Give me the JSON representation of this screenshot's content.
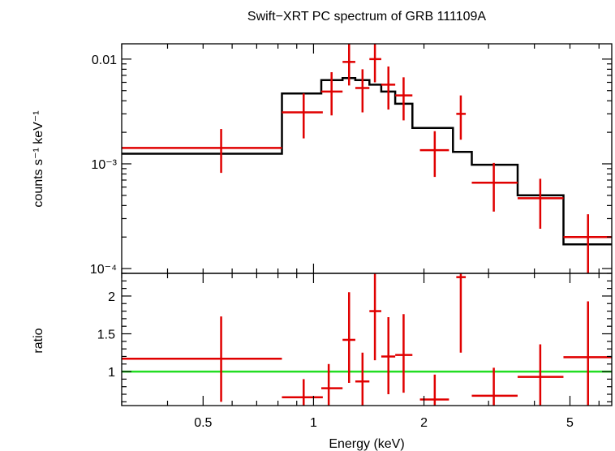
{
  "chart_data": [
    {
      "type": "line",
      "title": "Swift−XRT PC spectrum of GRB 111109A",
      "ylabel": "counts s⁻¹ keV⁻¹",
      "xlabel": "",
      "x_scale": "log",
      "y_scale": "log",
      "xlim": [
        0.3,
        6.5
      ],
      "ylim": [
        9e-05,
        0.014
      ],
      "y_ticks": [
        {
          "value": 0.01,
          "label": "0.01"
        },
        {
          "value": 0.001,
          "label": "10⁻³"
        },
        {
          "value": 0.0001,
          "label": "10⁻⁴"
        }
      ],
      "data_color": "#e00000",
      "model_color": "#000000",
      "data": [
        {
          "x": 0.56,
          "xlo": 0.3,
          "xhi": 0.82,
          "y": 0.00142,
          "ylo": 0.00082,
          "yhi": 0.00215
        },
        {
          "x": 0.94,
          "xlo": 0.82,
          "xhi": 1.06,
          "y": 0.0031,
          "ylo": 0.00175,
          "yhi": 0.0047
        },
        {
          "x": 1.12,
          "xlo": 1.05,
          "xhi": 1.2,
          "y": 0.0049,
          "ylo": 0.0029,
          "yhi": 0.0075
        },
        {
          "x": 1.25,
          "xlo": 1.2,
          "xhi": 1.3,
          "y": 0.0094,
          "ylo": 0.0056,
          "yhi": 0.014
        },
        {
          "x": 1.36,
          "xlo": 1.3,
          "xhi": 1.42,
          "y": 0.0053,
          "ylo": 0.0031,
          "yhi": 0.008
        },
        {
          "x": 1.47,
          "xlo": 1.42,
          "xhi": 1.53,
          "y": 0.01,
          "ylo": 0.006,
          "yhi": 0.014
        },
        {
          "x": 1.6,
          "xlo": 1.53,
          "xhi": 1.67,
          "y": 0.0057,
          "ylo": 0.0033,
          "yhi": 0.0085
        },
        {
          "x": 1.76,
          "xlo": 1.67,
          "xhi": 1.86,
          "y": 0.0045,
          "ylo": 0.0026,
          "yhi": 0.0067
        },
        {
          "x": 2.14,
          "xlo": 1.95,
          "xhi": 2.34,
          "y": 0.00135,
          "ylo": 0.00075,
          "yhi": 0.00205
        },
        {
          "x": 2.52,
          "xlo": 2.45,
          "xhi": 2.6,
          "y": 0.003,
          "ylo": 0.0017,
          "yhi": 0.0045
        },
        {
          "x": 3.1,
          "xlo": 2.7,
          "xhi": 3.6,
          "y": 0.00066,
          "ylo": 0.00035,
          "yhi": 0.00102
        },
        {
          "x": 4.15,
          "xlo": 3.6,
          "xhi": 4.8,
          "y": 0.00047,
          "ylo": 0.00024,
          "yhi": 0.00072
        },
        {
          "x": 5.6,
          "xlo": 4.8,
          "xhi": 6.5,
          "y": 0.0002,
          "ylo": 7e-05,
          "yhi": 0.00033
        }
      ],
      "model_steps": [
        {
          "xlo": 0.3,
          "xhi": 0.82,
          "y": 0.00125
        },
        {
          "xlo": 0.82,
          "xhi": 1.05,
          "y": 0.0047
        },
        {
          "xlo": 1.05,
          "xhi": 1.2,
          "y": 0.0063
        },
        {
          "xlo": 1.2,
          "xhi": 1.3,
          "y": 0.0066
        },
        {
          "xlo": 1.3,
          "xhi": 1.42,
          "y": 0.0063
        },
        {
          "xlo": 1.42,
          "xhi": 1.53,
          "y": 0.0057
        },
        {
          "xlo": 1.53,
          "xhi": 1.67,
          "y": 0.0049
        },
        {
          "xlo": 1.67,
          "xhi": 1.86,
          "y": 0.00375
        },
        {
          "xlo": 1.86,
          "xhi": 2.4,
          "y": 0.0022
        },
        {
          "xlo": 2.4,
          "xhi": 2.7,
          "y": 0.0013
        },
        {
          "xlo": 2.7,
          "xhi": 3.6,
          "y": 0.00098
        },
        {
          "xlo": 3.6,
          "xhi": 4.8,
          "y": 0.0005
        },
        {
          "xlo": 4.8,
          "xhi": 6.5,
          "y": 0.00017
        }
      ]
    },
    {
      "type": "line",
      "title": "",
      "ylabel": "ratio",
      "xlabel": "Energy (keV)",
      "x_scale": "log",
      "y_scale": "linear",
      "xlim": [
        0.3,
        6.5
      ],
      "ylim": [
        0.55,
        2.3
      ],
      "x_ticks": [
        {
          "value": 0.5,
          "label": "0.5"
        },
        {
          "value": 1,
          "label": "1"
        },
        {
          "value": 2,
          "label": "2"
        },
        {
          "value": 5,
          "label": "5"
        }
      ],
      "y_ticks": [
        {
          "value": 1,
          "label": "1"
        },
        {
          "value": 1.5,
          "label": "1.5"
        },
        {
          "value": 2,
          "label": "2"
        }
      ],
      "data_color": "#e00000",
      "reference_line": {
        "y": 1,
        "color": "#22dd22"
      },
      "data": [
        {
          "x": 0.56,
          "xlo": 0.3,
          "xhi": 0.82,
          "y": 1.17,
          "ylo": 0.6,
          "yhi": 1.73
        },
        {
          "x": 0.94,
          "xlo": 0.82,
          "xhi": 1.06,
          "y": 0.66,
          "ylo": 0.42,
          "yhi": 0.9
        },
        {
          "x": 1.1,
          "xlo": 1.05,
          "xhi": 1.2,
          "y": 0.78,
          "ylo": 0.52,
          "yhi": 1.1
        },
        {
          "x": 1.25,
          "xlo": 1.2,
          "xhi": 1.3,
          "y": 1.42,
          "ylo": 0.85,
          "yhi": 2.05
        },
        {
          "x": 1.36,
          "xlo": 1.3,
          "xhi": 1.42,
          "y": 0.87,
          "ylo": 0.5,
          "yhi": 1.25
        },
        {
          "x": 1.47,
          "xlo": 1.42,
          "xhi": 1.53,
          "y": 1.8,
          "ylo": 1.15,
          "yhi": 2.6
        },
        {
          "x": 1.6,
          "xlo": 1.53,
          "xhi": 1.67,
          "y": 1.2,
          "ylo": 0.7,
          "yhi": 1.72
        },
        {
          "x": 1.76,
          "xlo": 1.67,
          "xhi": 1.86,
          "y": 1.22,
          "ylo": 0.72,
          "yhi": 1.76
        },
        {
          "x": 2.14,
          "xlo": 1.95,
          "xhi": 2.34,
          "y": 0.63,
          "ylo": 0.38,
          "yhi": 0.96
        },
        {
          "x": 2.52,
          "xlo": 2.45,
          "xhi": 2.6,
          "y": 2.25,
          "ylo": 1.25,
          "yhi": 2.8
        },
        {
          "x": 3.1,
          "xlo": 2.7,
          "xhi": 3.6,
          "y": 0.68,
          "ylo": 0.35,
          "yhi": 1.05
        },
        {
          "x": 4.15,
          "xlo": 3.6,
          "xhi": 4.8,
          "y": 0.93,
          "ylo": 0.5,
          "yhi": 1.36
        },
        {
          "x": 5.6,
          "xlo": 4.8,
          "xhi": 6.5,
          "y": 1.19,
          "ylo": 0.4,
          "yhi": 1.93
        }
      ]
    }
  ]
}
